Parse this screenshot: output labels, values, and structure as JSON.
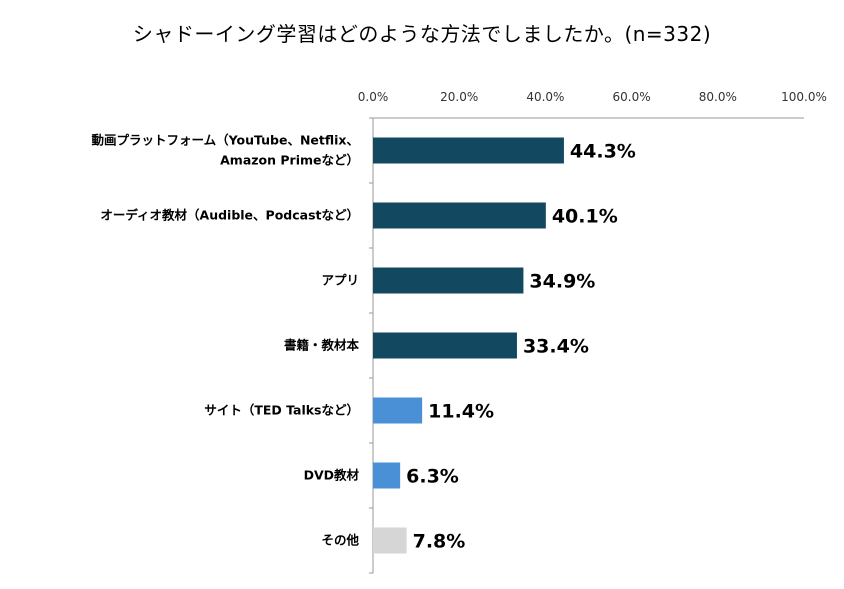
{
  "chart_data": {
    "type": "bar",
    "orientation": "horizontal",
    "title": "シャドーイング学習はどのような方法でしましたか。(n=332)",
    "xlim": [
      0,
      100
    ],
    "xticks": [
      0,
      20,
      40,
      60,
      80,
      100
    ],
    "xtick_labels": [
      "0.0%",
      "20.0%",
      "40.0%",
      "60.0%",
      "80.0%",
      "100.0%"
    ],
    "xaxis_position": "top",
    "grid": false,
    "categories": [
      [
        "動画プラットフォーム（YouTube、Netflix、",
        "Amazon Primeなど）"
      ],
      [
        "オーディオ教材（Audible、Podcastなど）"
      ],
      [
        "アプリ"
      ],
      [
        "書籍・教材本"
      ],
      [
        "サイト（TED Talksなど）"
      ],
      [
        "DVD教材"
      ],
      [
        "その他"
      ]
    ],
    "values": [
      44.3,
      40.1,
      34.9,
      33.4,
      11.4,
      6.3,
      7.8
    ],
    "data_labels": [
      "44.3%",
      "40.1%",
      "34.9%",
      "33.4%",
      "11.4%",
      "6.3%",
      "7.8%"
    ],
    "colors": [
      "#124860",
      "#124860",
      "#124860",
      "#124860",
      "#4a90d6",
      "#4a90d6",
      "#d6d6d6"
    ]
  }
}
